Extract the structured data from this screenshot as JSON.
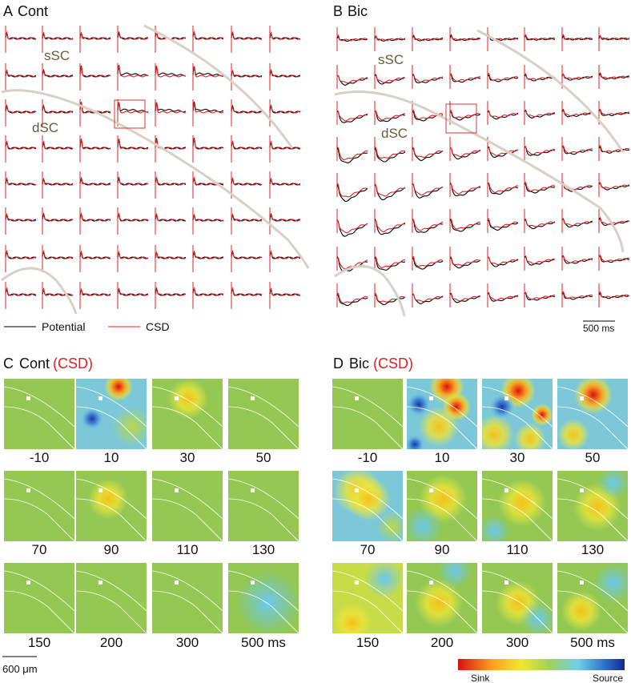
{
  "panels": [
    {
      "letter": "A",
      "title": "Cont",
      "region_top": "sSC",
      "region_bottom": "dSC"
    },
    {
      "letter": "B",
      "title": "Bic",
      "region_top": "sSC",
      "region_bottom": "dSC"
    }
  ],
  "legend": {
    "potential": "Potential",
    "csd": "CSD"
  },
  "time_scale": "500 ms",
  "maps": [
    {
      "letter": "C",
      "title": "Cont",
      "subtitle": "(CSD)",
      "times": [
        "-10",
        "10",
        "30",
        "50",
        "70",
        "90",
        "110",
        "130",
        "150",
        "200",
        "300",
        "500 ms"
      ]
    },
    {
      "letter": "D",
      "title": "Bic",
      "subtitle": "(CSD)",
      "times": [
        "-10",
        "10",
        "30",
        "50",
        "70",
        "90",
        "110",
        "130",
        "150",
        "200",
        "300",
        "500 ms"
      ]
    }
  ],
  "space_scale": "600 μm",
  "colorbar": {
    "low": "Sink",
    "high": "Source"
  }
}
